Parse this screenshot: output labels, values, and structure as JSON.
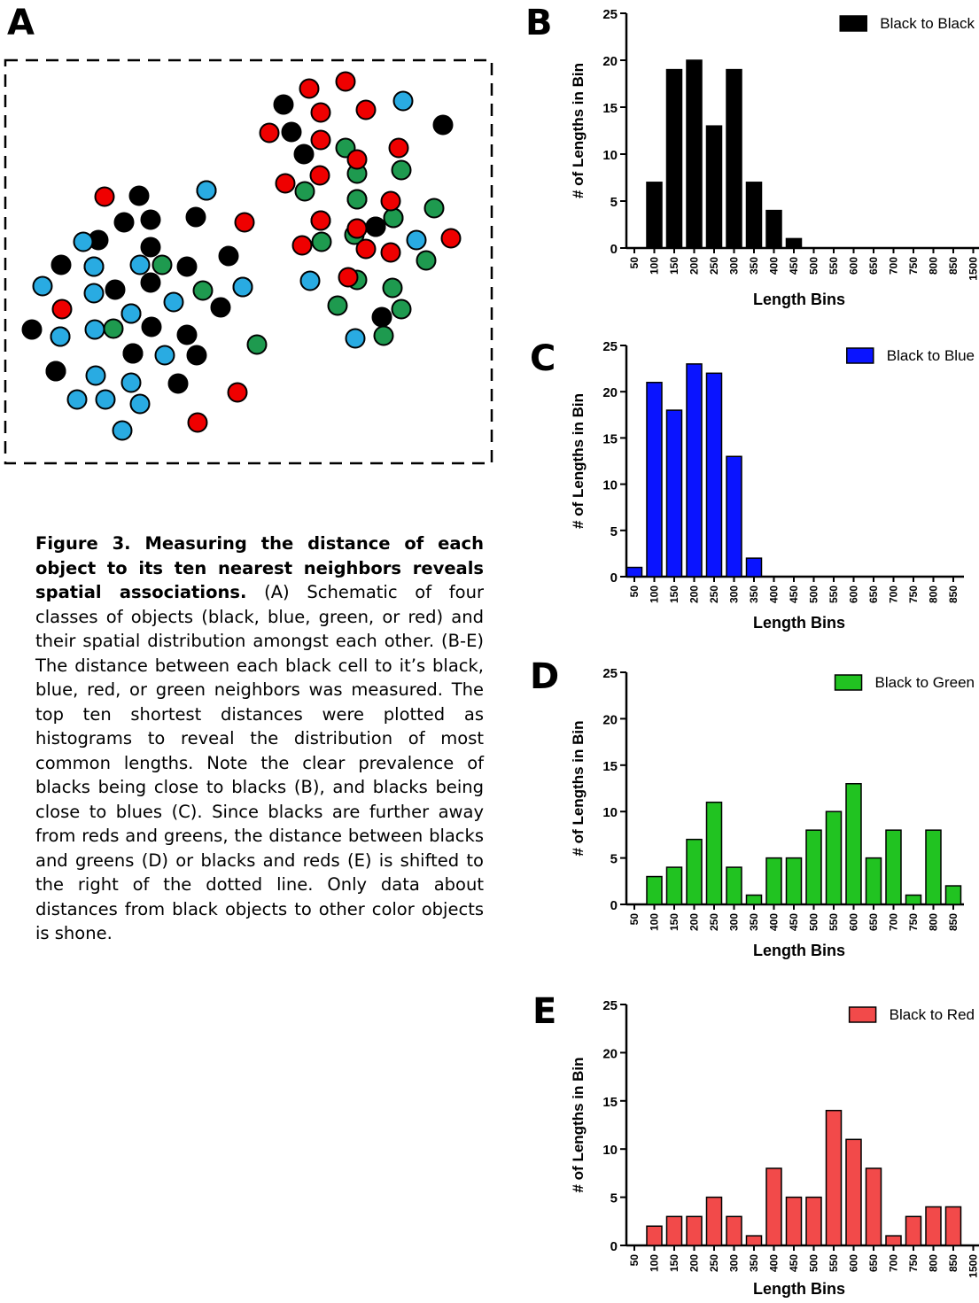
{
  "panels": {
    "a": "A",
    "b": "B",
    "c": "C",
    "d": "D",
    "e": "E"
  },
  "caption": {
    "title": "Figure 3.  Measuring  the distance of each object to its ten nearest neighbors reveals spatial associations.",
    "body": " (A)  Schematic of four classes of objects (black, blue, green, or red) and their spatial distribution amongst each other. (B-E) The distance between each black cell to it’s black, blue, red, or green neighbors was measured. The top ten shortest distances were plotted as histograms to reveal the distribution of most common lengths. Note the clear prevalence of blacks being close to blacks (B), and blacks being close to blues (C). Since blacks are further away from reds and greens, the distance between blacks and greens (D) or  blacks and reds (E) is shifted to the right of the dotted line. Only data about distances from black objects to other color objects is shone."
  },
  "colors": {
    "black": "#000000",
    "blue": "#29abe2",
    "green": "#1e9a4f",
    "red": "#ef0000",
    "bar_black": "#000000",
    "bar_blue": "#0a14ff",
    "bar_green": "#21c321",
    "bar_red": "#f24a4a"
  },
  "schematic": {
    "objects_per_class": {
      "black": 28,
      "blue": 27,
      "green": 21,
      "red": 25
    }
  },
  "chart_data": [
    {
      "type": "bar",
      "panel": "B",
      "color_key": "bar_black",
      "categories": [
        "50",
        "100",
        "150",
        "200",
        "250",
        "300",
        "350",
        "400",
        "450",
        "500",
        "550",
        "600",
        "650",
        "700",
        "750",
        "800",
        "850",
        "1500"
      ],
      "values": [
        0,
        7,
        19,
        20,
        13,
        19,
        7,
        4,
        1,
        0,
        0,
        0,
        0,
        0,
        0,
        0,
        0,
        0
      ],
      "series_name": "Black to Black",
      "xlabel": "Length Bins",
      "ylabel": "# of Lengths in Bin",
      "ylim": [
        0,
        25
      ],
      "yticks": [
        0,
        5,
        10,
        15,
        20,
        25
      ],
      "grid": false,
      "legend": "top-right"
    },
    {
      "type": "bar",
      "panel": "C",
      "color_key": "bar_blue",
      "categories": [
        "50",
        "100",
        "150",
        "200",
        "250",
        "300",
        "350",
        "400",
        "450",
        "500",
        "550",
        "600",
        "650",
        "700",
        "750",
        "800",
        "850"
      ],
      "values": [
        1,
        21,
        18,
        23,
        22,
        13,
        2,
        0,
        0,
        0,
        0,
        0,
        0,
        0,
        0,
        0,
        0
      ],
      "series_name": "Black to Blue",
      "xlabel": "Length Bins",
      "ylabel": "# of Lengths in Bin",
      "ylim": [
        0,
        25
      ],
      "yticks": [
        0,
        5,
        10,
        15,
        20,
        25
      ],
      "grid": false,
      "legend": "top-right"
    },
    {
      "type": "bar",
      "panel": "D",
      "color_key": "bar_green",
      "categories": [
        "50",
        "100",
        "150",
        "200",
        "250",
        "300",
        "350",
        "400",
        "450",
        "500",
        "550",
        "600",
        "650",
        "700",
        "750",
        "800",
        "850"
      ],
      "values": [
        0,
        3,
        4,
        7,
        11,
        4,
        1,
        5,
        5,
        8,
        10,
        13,
        5,
        8,
        1,
        8,
        2
      ],
      "series_name": "Black to Green",
      "xlabel": "Length Bins",
      "ylabel": "# of Lengths in Bin",
      "ylim": [
        0,
        25
      ],
      "yticks": [
        0,
        5,
        10,
        15,
        20,
        25
      ],
      "grid": false,
      "legend": "top-right"
    },
    {
      "type": "bar",
      "panel": "E",
      "color_key": "bar_red",
      "categories": [
        "50",
        "100",
        "150",
        "200",
        "250",
        "300",
        "350",
        "400",
        "450",
        "500",
        "550",
        "600",
        "650",
        "700",
        "750",
        "800",
        "850",
        "1500"
      ],
      "values": [
        0,
        2,
        3,
        3,
        5,
        3,
        1,
        8,
        5,
        5,
        14,
        11,
        8,
        1,
        3,
        4,
        4,
        0
      ],
      "series_name": "Black to Red",
      "xlabel": "Length Bins",
      "ylabel": "# of Lengths in Bin",
      "ylim": [
        0,
        25
      ],
      "yticks": [
        0,
        5,
        10,
        15,
        20,
        25
      ],
      "grid": false,
      "legend": "top-right"
    }
  ]
}
